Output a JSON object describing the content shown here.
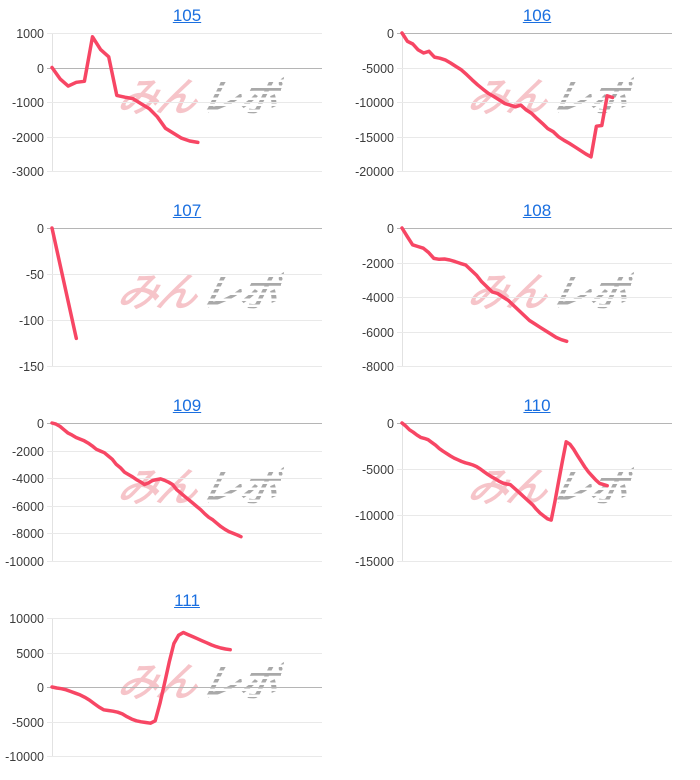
{
  "watermark": {
    "pink_text": "みん",
    "gray_text": "レポ"
  },
  "styles": {
    "line_color": "#f74664",
    "grid_color": "#e9e9e9",
    "zero_line_color": "#b5b5b5",
    "axis_line_color": "#e2e2e2",
    "label_color": "#3c3c3c",
    "title_color": "#1a6fe0",
    "background": "#ffffff"
  },
  "chart_data": [
    {
      "type": "line",
      "title": "105",
      "xlabel": "",
      "ylabel": "",
      "legend": "none",
      "grid": true,
      "ymax": 1000,
      "ymin": -3000,
      "yticks": [
        1000,
        0,
        -1000,
        -2000,
        -3000
      ],
      "x_fill": 0.54,
      "values": [
        0,
        -330,
        -540,
        -430,
        -400,
        890,
        520,
        310,
        -810,
        -860,
        -905,
        -1050,
        -1190,
        -1430,
        -1760,
        -1905,
        -2050,
        -2130,
        -2170
      ]
    },
    {
      "type": "line",
      "title": "106",
      "xlabel": "",
      "ylabel": "",
      "legend": "none",
      "grid": true,
      "ymax": 0,
      "ymin": -20000,
      "yticks": [
        0,
        -5000,
        -10000,
        -15000,
        -20000
      ],
      "x_fill": 0.78,
      "values": [
        0,
        -1200,
        -1600,
        -2450,
        -2900,
        -2650,
        -3500,
        -3650,
        -3900,
        -4350,
        -4850,
        -5350,
        -6050,
        -6800,
        -7500,
        -8150,
        -8750,
        -9200,
        -9700,
        -10200,
        -10450,
        -10700,
        -10450,
        -11150,
        -11650,
        -12400,
        -13100,
        -13850,
        -14300,
        -15050,
        -15550,
        -16000,
        -16500,
        -17000,
        -17500,
        -17950,
        -13500,
        -13400,
        -9100,
        -9350
      ]
    },
    {
      "type": "line",
      "title": "107",
      "xlabel": "",
      "ylabel": "",
      "legend": "none",
      "grid": true,
      "ymax": 0,
      "ymin": -150,
      "yticks": [
        0,
        -50,
        -100,
        -150
      ],
      "x_fill": 0.09,
      "values": [
        0,
        -120
      ]
    },
    {
      "type": "line",
      "title": "108",
      "xlabel": "",
      "ylabel": "",
      "legend": "none",
      "grid": true,
      "ymax": 0,
      "ymin": -8000,
      "yticks": [
        0,
        -2000,
        -4000,
        -6000,
        -8000
      ],
      "x_fill": 0.61,
      "values": [
        0,
        -500,
        -975,
        -1070,
        -1170,
        -1420,
        -1760,
        -1815,
        -1795,
        -1855,
        -1950,
        -2050,
        -2150,
        -2440,
        -2730,
        -3120,
        -3415,
        -3710,
        -3800,
        -4000,
        -4195,
        -4490,
        -4780,
        -5070,
        -5365,
        -5560,
        -5755,
        -5950,
        -6145,
        -6340,
        -6475,
        -6570
      ]
    },
    {
      "type": "line",
      "title": "109",
      "xlabel": "",
      "ylabel": "",
      "legend": "none",
      "grid": true,
      "ymax": 0,
      "ymin": -10000,
      "yticks": [
        0,
        -2000,
        -4000,
        -6000,
        -8000,
        -10000
      ],
      "x_fill": 0.7,
      "values": [
        0,
        -80,
        -250,
        -490,
        -730,
        -880,
        -1050,
        -1170,
        -1290,
        -1460,
        -1660,
        -1900,
        -2030,
        -2150,
        -2390,
        -2630,
        -3000,
        -3240,
        -3560,
        -3730,
        -3900,
        -4100,
        -4270,
        -4460,
        -4340,
        -4170,
        -4100,
        -4050,
        -4150,
        -4290,
        -4460,
        -4830,
        -5070,
        -5320,
        -5560,
        -5800,
        -6050,
        -6290,
        -6580,
        -6830,
        -7020,
        -7270,
        -7510,
        -7700,
        -7870,
        -7990,
        -8110,
        -8240
      ]
    },
    {
      "type": "line",
      "title": "110",
      "xlabel": "",
      "ylabel": "",
      "legend": "none",
      "grid": true,
      "ymax": 0,
      "ymin": -15000,
      "yticks": [
        0,
        -5000,
        -10000,
        -15000
      ],
      "x_fill": 0.76,
      "values": [
        0,
        -330,
        -740,
        -1000,
        -1300,
        -1560,
        -1670,
        -1815,
        -2110,
        -2410,
        -2780,
        -3070,
        -3330,
        -3590,
        -3810,
        -4000,
        -4190,
        -4330,
        -4440,
        -4560,
        -4740,
        -5000,
        -5300,
        -5590,
        -5850,
        -6070,
        -6330,
        -6520,
        -6630,
        -6700,
        -7040,
        -7410,
        -7780,
        -8150,
        -8520,
        -8890,
        -9370,
        -9780,
        -10110,
        -10410,
        -10550,
        -8500,
        -6300,
        -4150,
        -2040,
        -2300,
        -2850,
        -3520,
        -4150,
        -4780,
        -5330,
        -5780,
        -6220,
        -6560,
        -6700,
        -6810
      ]
    },
    {
      "type": "line",
      "title": "111",
      "xlabel": "",
      "ylabel": "",
      "legend": "none",
      "grid": true,
      "ymax": 10000,
      "ymin": -10000,
      "yticks": [
        10000,
        5000,
        0,
        -5000,
        -10000
      ],
      "x_fill": 0.66,
      "values": [
        0,
        -150,
        -250,
        -400,
        -650,
        -900,
        -1150,
        -1500,
        -1900,
        -2400,
        -2900,
        -3300,
        -3400,
        -3500,
        -3650,
        -3900,
        -4300,
        -4650,
        -4900,
        -5050,
        -5150,
        -5250,
        -4900,
        -2400,
        500,
        3600,
        6300,
        7500,
        7900,
        7600,
        7300,
        7000,
        6700,
        6400,
        6100,
        5850,
        5650,
        5500,
        5400
      ]
    }
  ]
}
